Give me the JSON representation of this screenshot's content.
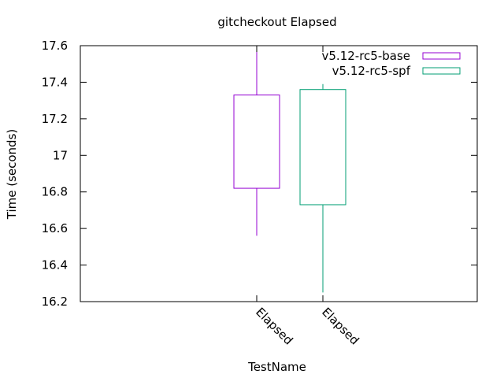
{
  "chart_data": {
    "type": "boxplot",
    "title": "gitcheckout Elapsed",
    "xlabel": "TestName",
    "ylabel": "Time (seconds)",
    "ylim": [
      16.2,
      17.6
    ],
    "yticks": [
      "16.2",
      "16.4",
      "16.6",
      "16.8",
      "17",
      "17.2",
      "17.4",
      "17.6"
    ],
    "categories": [
      "Elapsed",
      "Elapsed"
    ],
    "legend_position": "top-right",
    "grid": false,
    "series": [
      {
        "name": "v5.12-rc5-base",
        "color": "#9400d3",
        "min": 16.56,
        "q1": 16.82,
        "q3": 17.33,
        "max": 17.6
      },
      {
        "name": "v5.12-rc5-spf",
        "color": "#009e73",
        "min": 16.25,
        "q1": 16.73,
        "q3": 17.36,
        "max": 17.39
      }
    ]
  }
}
